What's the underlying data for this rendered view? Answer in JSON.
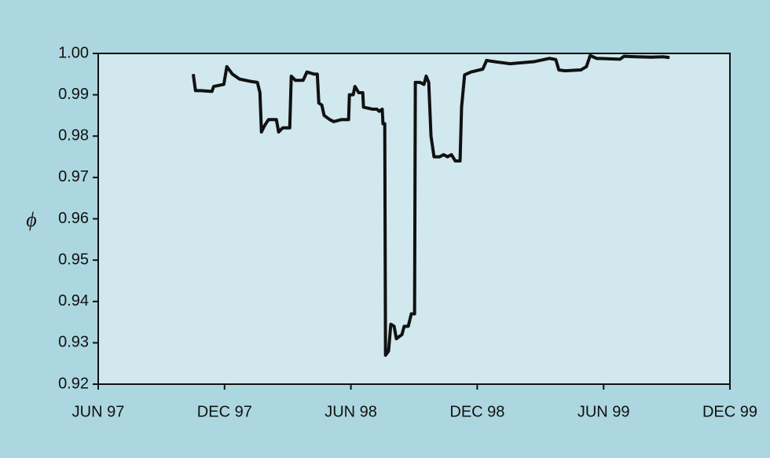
{
  "chart_data": {
    "type": "line",
    "y_label": "ϕ",
    "x": [
      1997.793,
      1997.802,
      1997.824,
      1997.867,
      1997.874,
      1997.914,
      1997.926,
      1997.948,
      1997.976,
      1998.023,
      1998.047,
      1998.057,
      1998.063,
      1998.075,
      1998.091,
      1998.122,
      1998.131,
      1998.147,
      1998.175,
      1998.181,
      1998.197,
      1998.228,
      1998.243,
      1998.271,
      1998.284,
      1998.29,
      1998.302,
      1998.311,
      1998.333,
      1998.349,
      1998.38,
      1998.408,
      1998.411,
      1998.426,
      1998.433,
      1998.448,
      1998.464,
      1998.467,
      1998.504,
      1998.52,
      1998.529,
      1998.541,
      1998.544,
      1998.551,
      1998.554,
      1998.566,
      1998.575,
      1998.588,
      1998.597,
      1998.619,
      1998.628,
      1998.644,
      1998.656,
      1998.669,
      1998.672,
      1998.69,
      1998.706,
      1998.715,
      1998.725,
      1998.734,
      1998.746,
      1998.768,
      1998.784,
      1998.799,
      1998.815,
      1998.83,
      1998.849,
      1998.855,
      1998.867,
      1998.892,
      1998.939,
      1998.954,
      1998.985,
      1999.047,
      1999.141,
      1999.203,
      1999.228,
      1999.24,
      1999.265,
      1999.327,
      1999.349,
      1999.364,
      1999.389,
      1999.482,
      1999.498,
      1999.544,
      1999.606,
      1999.653,
      1999.678
    ],
    "series": [
      {
        "color": "#111111",
        "values": [
          0.995,
          0.991,
          0.991,
          0.9908,
          0.992,
          0.9925,
          0.9968,
          0.995,
          0.9938,
          0.9932,
          0.993,
          0.9905,
          0.981,
          0.9825,
          0.984,
          0.984,
          0.981,
          0.982,
          0.982,
          0.9945,
          0.9935,
          0.9935,
          0.9955,
          0.995,
          0.995,
          0.988,
          0.9875,
          0.985,
          0.984,
          0.9835,
          0.984,
          0.984,
          0.99,
          0.99,
          0.992,
          0.9905,
          0.9905,
          0.987,
          0.9865,
          0.9865,
          0.986,
          0.9865,
          0.983,
          0.983,
          0.927,
          0.928,
          0.9345,
          0.934,
          0.931,
          0.932,
          0.934,
          0.934,
          0.937,
          0.937,
          0.993,
          0.993,
          0.9925,
          0.9945,
          0.993,
          0.98,
          0.975,
          0.975,
          0.9755,
          0.975,
          0.9755,
          0.974,
          0.974,
          0.987,
          0.9948,
          0.9955,
          0.9962,
          0.9983,
          0.998,
          0.9975,
          0.998,
          0.9988,
          0.9985,
          0.996,
          0.9958,
          0.996,
          0.9968,
          0.9995,
          0.9988,
          0.9986,
          0.9993,
          0.9992,
          0.9991,
          0.9992,
          0.999
        ]
      }
    ],
    "xlim": [
      1997.417,
      1999.917
    ],
    "xticks": [
      {
        "value": 1997.417,
        "label": "JUN 97"
      },
      {
        "value": 1997.917,
        "label": "DEC 97"
      },
      {
        "value": 1998.417,
        "label": "JUN 98"
      },
      {
        "value": 1998.917,
        "label": "DEC 98"
      },
      {
        "value": 1999.417,
        "label": "JUN 99"
      },
      {
        "value": 1999.917,
        "label": "DEC 99"
      }
    ],
    "ylim": [
      0.92,
      1
    ],
    "yticks": [
      0.92,
      0.93,
      0.94,
      0.95,
      0.96,
      0.97,
      0.98,
      0.99,
      {
        "value": 1,
        "label": "1.00"
      }
    ],
    "grid": false
  }
}
